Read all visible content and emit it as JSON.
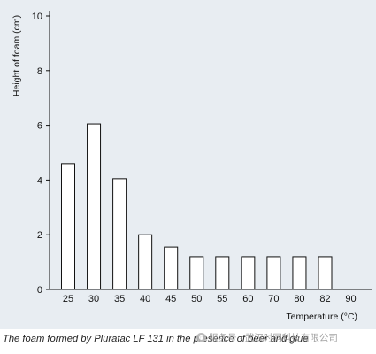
{
  "chart_data": {
    "type": "bar",
    "categories": [
      "25",
      "30",
      "35",
      "40",
      "45",
      "50",
      "55",
      "60",
      "70",
      "80",
      "82",
      "90"
    ],
    "values": [
      4.6,
      6.05,
      4.05,
      2.0,
      1.55,
      1.2,
      1.2,
      1.2,
      1.2,
      1.2,
      1.2,
      0
    ],
    "title": "",
    "xlabel": "Temperature (°C)",
    "ylabel": "Height of foam (cm)",
    "ylim": [
      0,
      10
    ],
    "yticks": [
      0,
      2,
      4,
      6,
      8,
      10
    ],
    "grid": false,
    "background": "#e8edf2",
    "bar_fill": "#ffffff",
    "bar_stroke": "#111111"
  },
  "caption": "The foam formed by Plurafac LF 131 in the presence of beer and glue",
  "watermark": "服务号 · 武汉时同科技有限公司"
}
